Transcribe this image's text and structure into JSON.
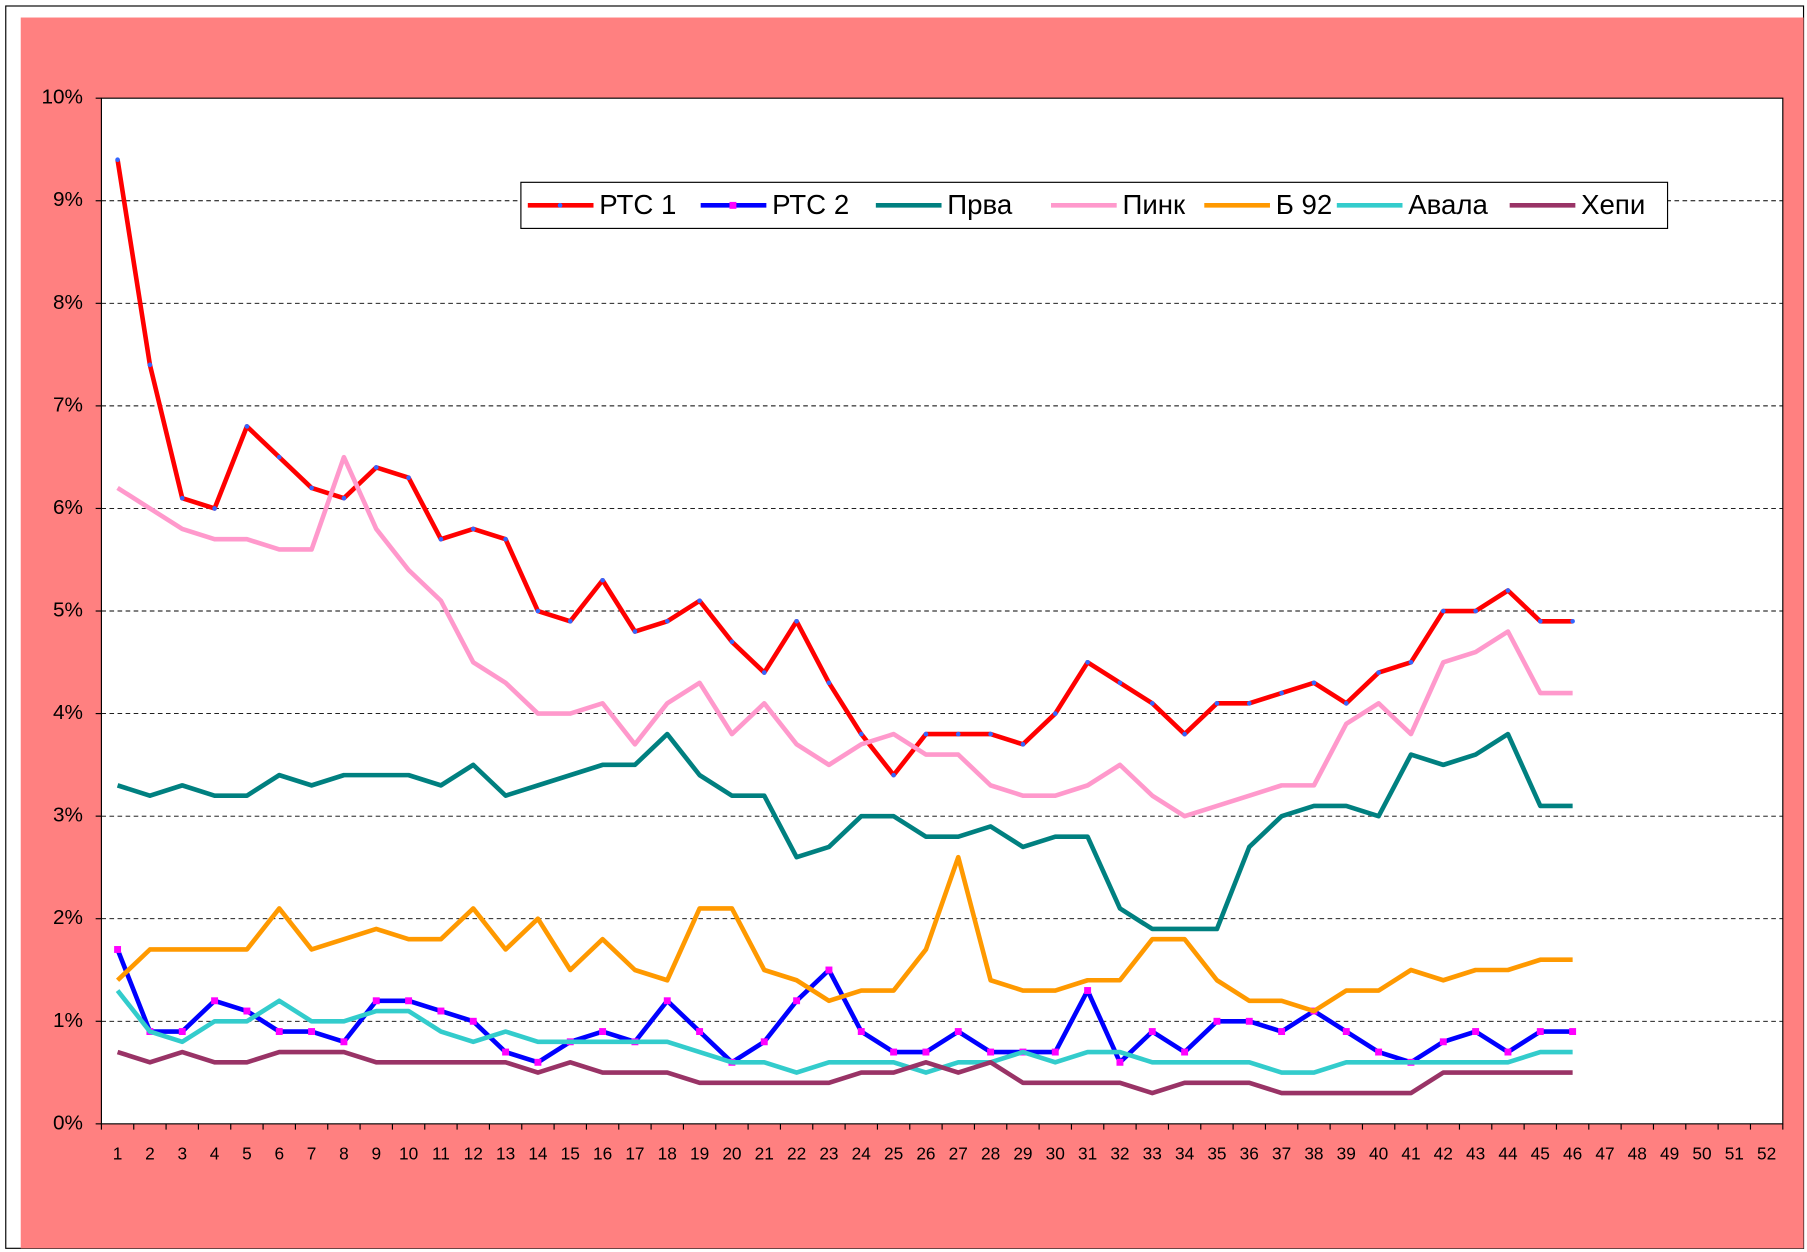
{
  "chart_data": {
    "type": "line",
    "categories": [
      1,
      2,
      3,
      4,
      5,
      6,
      7,
      8,
      9,
      10,
      11,
      12,
      13,
      14,
      15,
      16,
      17,
      18,
      19,
      20,
      21,
      22,
      23,
      24,
      25,
      26,
      27,
      28,
      29,
      30,
      31,
      32,
      33,
      34,
      35,
      36,
      37,
      38,
      39,
      40,
      41,
      42,
      43,
      44,
      45,
      46,
      47,
      48,
      49,
      50,
      51,
      52
    ],
    "ylim": [
      0,
      10
    ],
    "yticks": [
      {
        "value": 0,
        "label": "0%"
      },
      {
        "value": 1,
        "label": "1%"
      },
      {
        "value": 2,
        "label": "2%"
      },
      {
        "value": 3,
        "label": "3%"
      },
      {
        "value": 4,
        "label": "4%"
      },
      {
        "value": 5,
        "label": "5%"
      },
      {
        "value": 6,
        "label": "6%"
      },
      {
        "value": 7,
        "label": "7%"
      },
      {
        "value": 8,
        "label": "8%"
      },
      {
        "value": 9,
        "label": "9%"
      },
      {
        "value": 10,
        "label": "10%"
      }
    ],
    "grid": true,
    "series": [
      {
        "name": "РТС 1",
        "color": "#ff0000",
        "marker": "circle",
        "marker_color": "#3366ff",
        "values": [
          9.4,
          7.4,
          6.1,
          6.0,
          6.8,
          6.5,
          6.2,
          6.1,
          6.4,
          6.3,
          5.7,
          5.8,
          5.7,
          5.0,
          4.9,
          5.3,
          4.8,
          4.9,
          5.1,
          4.7,
          4.4,
          4.9,
          4.3,
          3.8,
          3.4,
          3.8,
          3.8,
          3.8,
          3.7,
          4.0,
          4.5,
          4.3,
          4.1,
          3.8,
          4.1,
          4.1,
          4.2,
          4.3,
          4.1,
          4.4,
          4.5,
          5.0,
          5.0,
          5.2,
          4.9,
          4.9,
          null,
          null,
          null,
          null,
          null,
          null
        ]
      },
      {
        "name": "РТС 2",
        "color": "#0000ff",
        "marker": "square",
        "marker_color": "#ff00ff",
        "values": [
          1.7,
          0.9,
          0.9,
          1.2,
          1.1,
          0.9,
          0.9,
          0.8,
          1.2,
          1.2,
          1.1,
          1.0,
          0.7,
          0.6,
          0.8,
          0.9,
          0.8,
          1.2,
          0.9,
          0.6,
          0.8,
          1.2,
          1.5,
          0.9,
          0.7,
          0.7,
          0.9,
          0.7,
          0.7,
          0.7,
          1.3,
          0.6,
          0.9,
          0.7,
          1.0,
          1.0,
          0.9,
          1.1,
          0.9,
          0.7,
          0.6,
          0.8,
          0.9,
          0.7,
          0.9,
          0.9,
          null,
          null,
          null,
          null,
          null,
          null
        ]
      },
      {
        "name": "Прва",
        "color": "#008080",
        "values": [
          3.3,
          3.2,
          3.3,
          3.2,
          3.2,
          3.4,
          3.3,
          3.4,
          3.4,
          3.4,
          3.3,
          3.5,
          3.2,
          3.3,
          3.4,
          3.5,
          3.5,
          3.8,
          3.4,
          3.2,
          3.2,
          2.6,
          2.7,
          3.0,
          3.0,
          2.8,
          2.8,
          2.9,
          2.7,
          2.8,
          2.8,
          2.1,
          1.9,
          1.9,
          1.9,
          2.7,
          3.0,
          3.1,
          3.1,
          3.0,
          3.6,
          3.5,
          3.6,
          3.8,
          3.1,
          3.1,
          null,
          null,
          null,
          null,
          null,
          null
        ]
      },
      {
        "name": "Пинк",
        "color": "#ff99cc",
        "values": [
          6.2,
          6.0,
          5.8,
          5.7,
          5.7,
          5.6,
          5.6,
          6.5,
          5.8,
          5.4,
          5.1,
          4.5,
          4.3,
          4.0,
          4.0,
          4.1,
          3.7,
          4.1,
          4.3,
          3.8,
          4.1,
          3.7,
          3.5,
          3.7,
          3.8,
          3.6,
          3.6,
          3.3,
          3.2,
          3.2,
          3.3,
          3.5,
          3.2,
          3.0,
          3.1,
          3.2,
          3.3,
          3.3,
          3.9,
          4.1,
          3.8,
          4.5,
          4.6,
          4.8,
          4.2,
          4.2,
          null,
          null,
          null,
          null,
          null,
          null
        ]
      },
      {
        "name": "Б 92",
        "color": "#ff9900",
        "values": [
          1.4,
          1.7,
          1.7,
          1.7,
          1.7,
          2.1,
          1.7,
          1.8,
          1.9,
          1.8,
          1.8,
          2.1,
          1.7,
          2.0,
          1.5,
          1.8,
          1.5,
          1.4,
          2.1,
          2.1,
          1.5,
          1.4,
          1.2,
          1.3,
          1.3,
          1.7,
          2.6,
          1.4,
          1.3,
          1.3,
          1.4,
          1.4,
          1.8,
          1.8,
          1.4,
          1.2,
          1.2,
          1.1,
          1.3,
          1.3,
          1.5,
          1.4,
          1.5,
          1.5,
          1.6,
          1.6,
          null,
          null,
          null,
          null,
          null,
          null
        ]
      },
      {
        "name": "Авала",
        "color": "#33cccc",
        "values": [
          1.3,
          0.9,
          0.8,
          1.0,
          1.0,
          1.2,
          1.0,
          1.0,
          1.1,
          1.1,
          0.9,
          0.8,
          0.9,
          0.8,
          0.8,
          0.8,
          0.8,
          0.8,
          0.7,
          0.6,
          0.6,
          0.5,
          0.6,
          0.6,
          0.6,
          0.5,
          0.6,
          0.6,
          0.7,
          0.6,
          0.7,
          0.7,
          0.6,
          0.6,
          0.6,
          0.6,
          0.5,
          0.5,
          0.6,
          0.6,
          0.6,
          0.6,
          0.6,
          0.6,
          0.7,
          0.7,
          null,
          null,
          null,
          null,
          null,
          null
        ]
      },
      {
        "name": "Хепи",
        "color": "#993366",
        "values": [
          0.7,
          0.6,
          0.7,
          0.6,
          0.6,
          0.7,
          0.7,
          0.7,
          0.6,
          0.6,
          0.6,
          0.6,
          0.6,
          0.5,
          0.6,
          0.5,
          0.5,
          0.5,
          0.4,
          0.4,
          0.4,
          0.4,
          0.4,
          0.5,
          0.5,
          0.6,
          0.5,
          0.6,
          0.4,
          0.4,
          0.4,
          0.4,
          0.3,
          0.4,
          0.4,
          0.4,
          0.3,
          0.3,
          0.3,
          0.3,
          0.3,
          0.5,
          0.5,
          0.5,
          0.5,
          0.5,
          null,
          null,
          null,
          null,
          null,
          null
        ]
      }
    ]
  }
}
